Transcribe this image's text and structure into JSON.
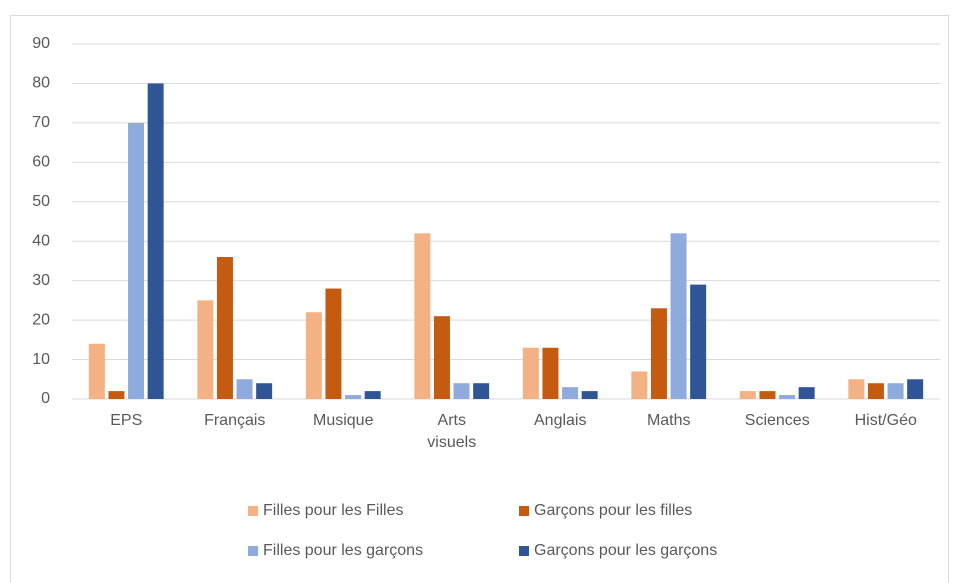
{
  "chart_data": {
    "type": "bar",
    "categories": [
      "EPS",
      "Français",
      "Musique",
      "Arts visuels",
      "Anglais",
      "Maths",
      "Sciences",
      "Hist/Géo"
    ],
    "series": [
      {
        "name": "Filles pour les Filles",
        "color": "#f4b183",
        "values": [
          14,
          25,
          22,
          42,
          13,
          7,
          2,
          5
        ]
      },
      {
        "name": "Garçons pour les filles",
        "color": "#c55a11",
        "values": [
          2,
          36,
          28,
          21,
          13,
          23,
          2,
          4
        ]
      },
      {
        "name": "Filles pour les garçons",
        "color": "#8faadc",
        "values": [
          70,
          5,
          1,
          4,
          3,
          42,
          1,
          4
        ]
      },
      {
        "name": "Garçons pour les garçons",
        "color": "#2f5597",
        "values": [
          80,
          4,
          2,
          4,
          2,
          29,
          3,
          5
        ]
      }
    ],
    "ylim": [
      0,
      90
    ],
    "yticks": [
      0,
      10,
      20,
      30,
      40,
      50,
      60,
      70,
      80,
      90
    ],
    "grid": true,
    "legend": "bottom"
  }
}
